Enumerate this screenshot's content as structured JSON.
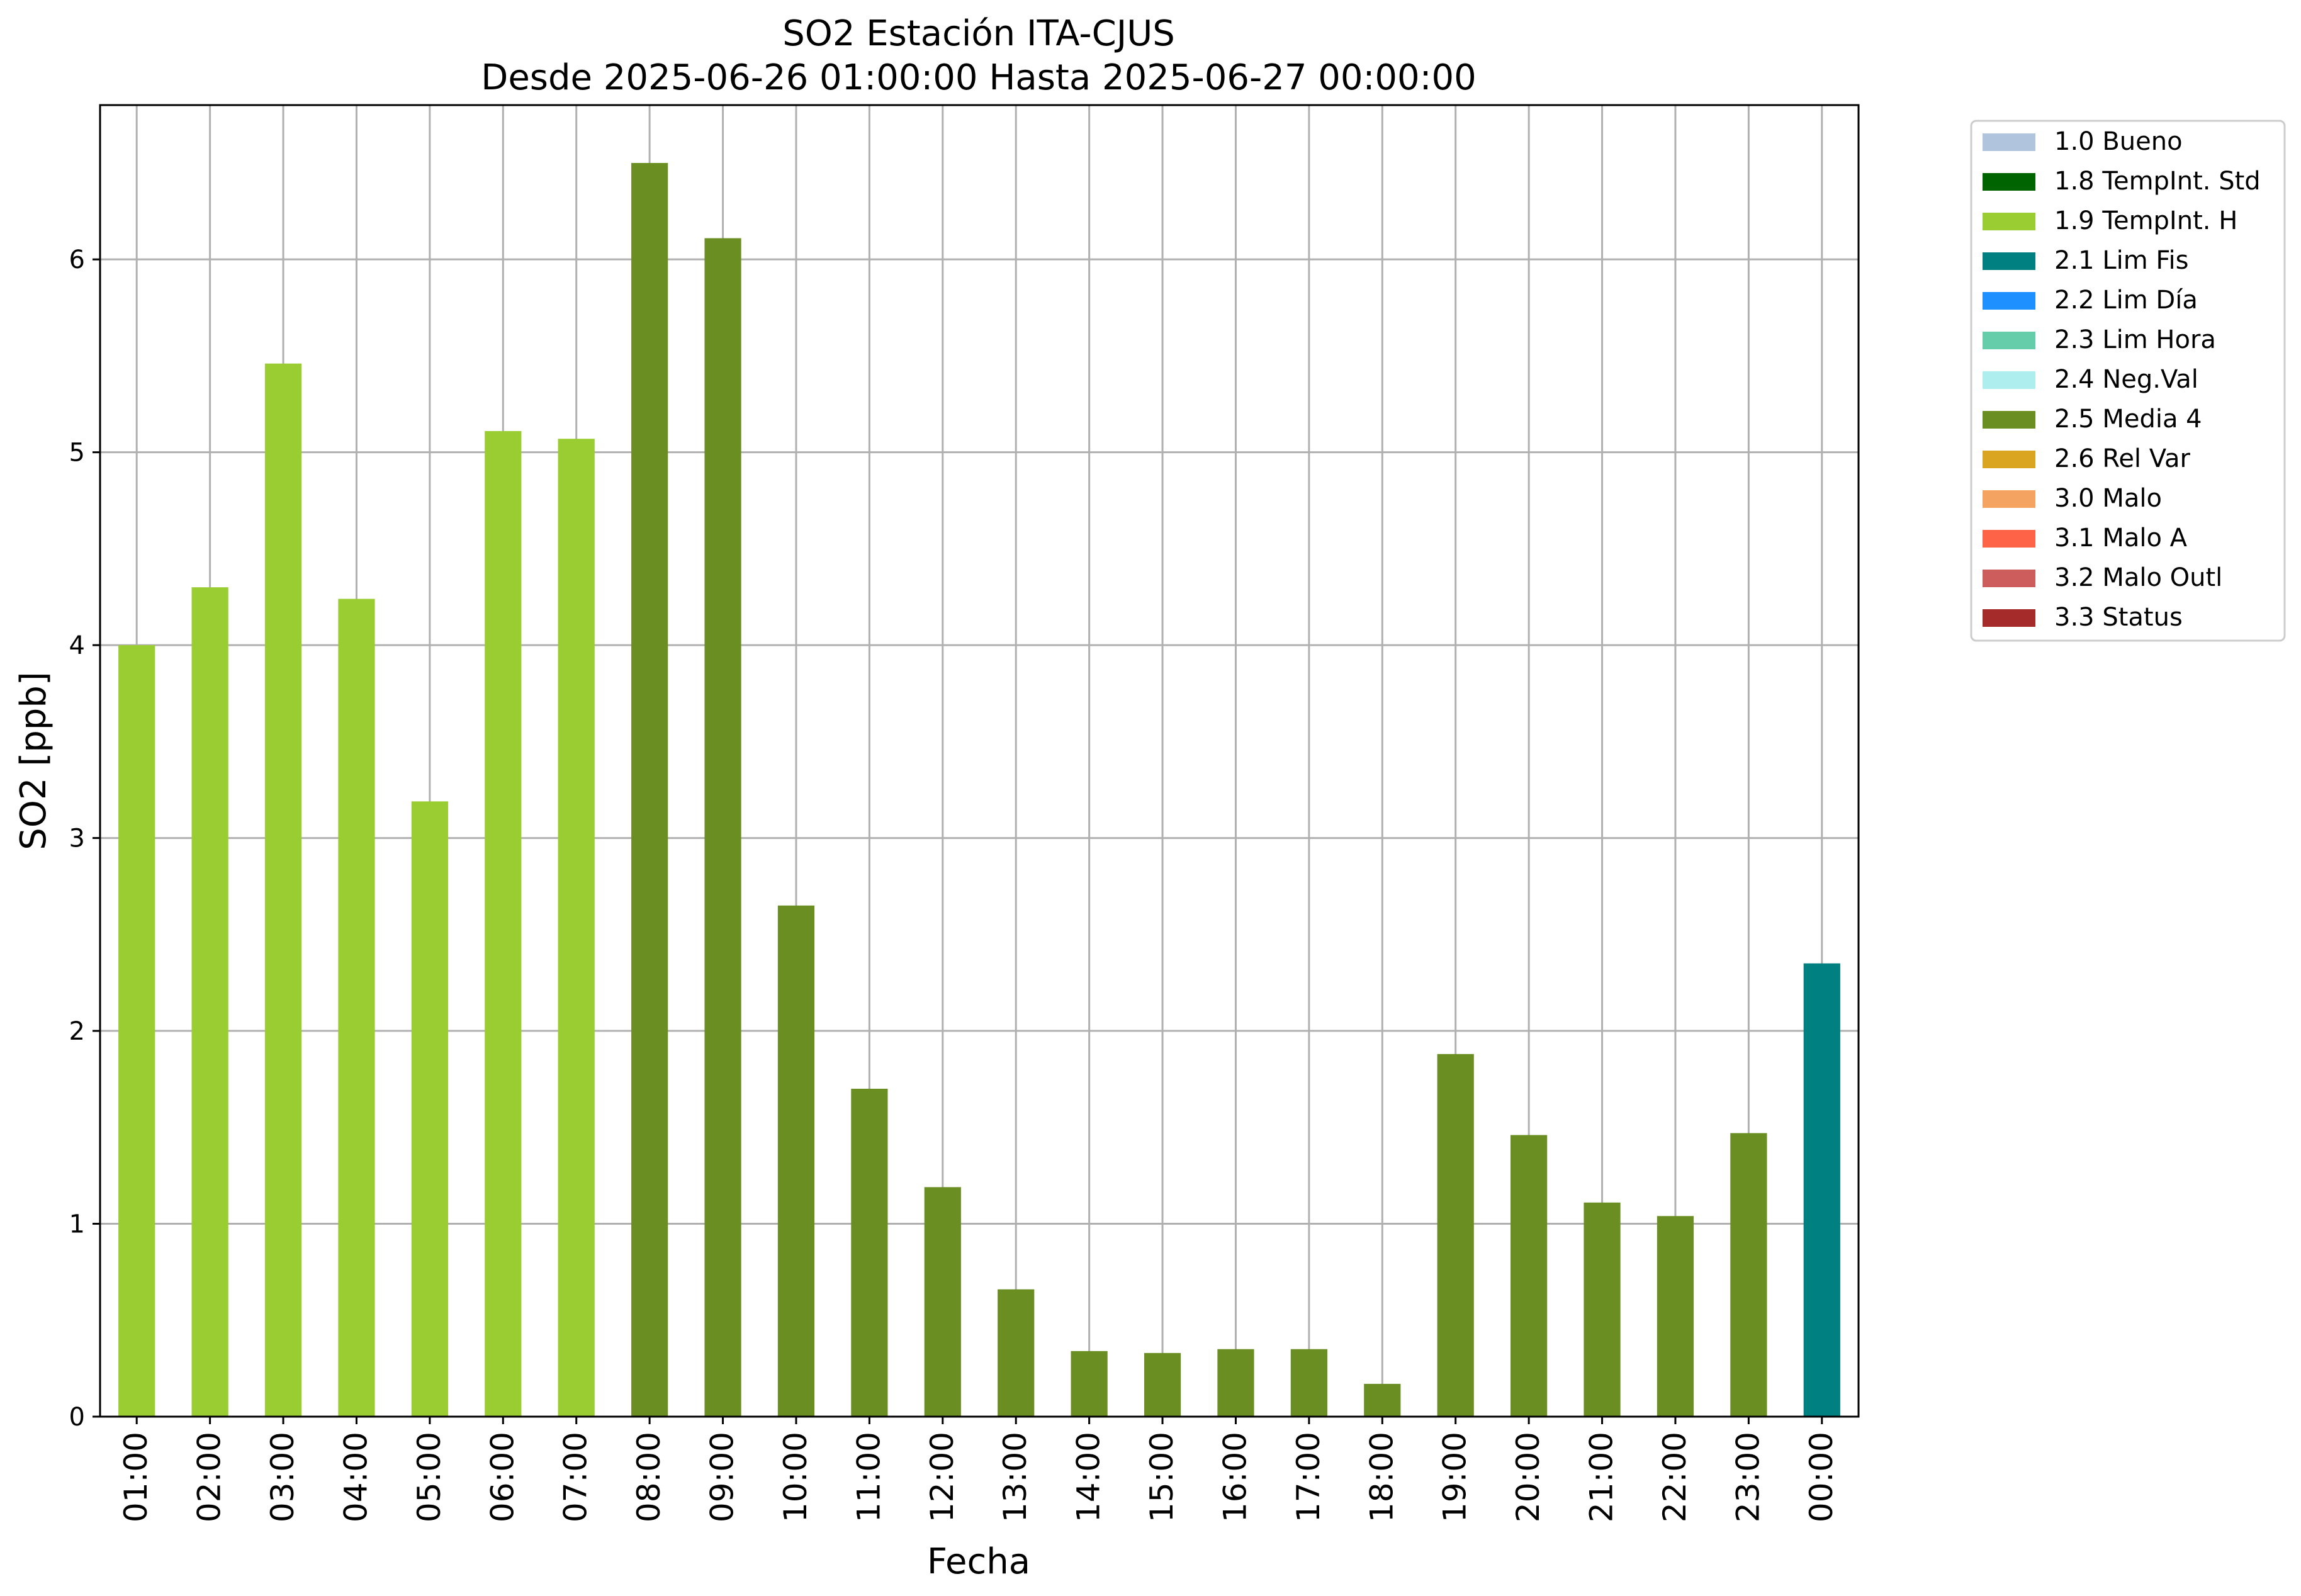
{
  "chart_data": {
    "type": "bar",
    "title": "SO2 Estación ITA-CJUS",
    "subtitle": "Desde 2025-06-26 01:00:00 Hasta 2025-06-27 00:00:00",
    "xlabel": "Fecha",
    "ylabel": "SO2 [ppb]",
    "ylim": [
      0,
      6.8
    ],
    "yticks": [
      "0",
      "1",
      "2",
      "3",
      "4",
      "5",
      "6"
    ],
    "grid": true,
    "legend_position": "outside-top-right",
    "categories": [
      "01:00",
      "02:00",
      "03:00",
      "04:00",
      "05:00",
      "06:00",
      "07:00",
      "08:00",
      "09:00",
      "10:00",
      "11:00",
      "12:00",
      "13:00",
      "14:00",
      "15:00",
      "16:00",
      "17:00",
      "18:00",
      "19:00",
      "20:00",
      "21:00",
      "22:00",
      "23:00",
      "00:00"
    ],
    "values": [
      4.0,
      4.3,
      5.46,
      4.24,
      3.19,
      5.11,
      5.07,
      6.5,
      6.11,
      2.65,
      1.7,
      1.19,
      0.66,
      0.34,
      0.33,
      0.35,
      0.35,
      0.17,
      1.88,
      1.46,
      1.11,
      1.04,
      1.47,
      2.35
    ],
    "flags": [
      "1.9",
      "1.9",
      "1.9",
      "1.9",
      "1.9",
      "1.9",
      "1.9",
      "2.5",
      "2.5",
      "2.5",
      "2.5",
      "2.5",
      "2.5",
      "2.5",
      "2.5",
      "2.5",
      "2.5",
      "2.5",
      "2.5",
      "2.5",
      "2.5",
      "2.5",
      "2.5",
      "2.1"
    ],
    "legend": [
      {
        "code": "1.0",
        "label": "1.0 Bueno",
        "color": "#b0c4de"
      },
      {
        "code": "1.8",
        "label": "1.8 TempInt. Std",
        "color": "#006400"
      },
      {
        "code": "1.9",
        "label": "1.9 TempInt. H",
        "color": "#9acd32"
      },
      {
        "code": "2.1",
        "label": "2.1 Lim Fis",
        "color": "#008080"
      },
      {
        "code": "2.2",
        "label": "2.2 Lim Día",
        "color": "#1e90ff"
      },
      {
        "code": "2.3",
        "label": "2.3 Lim Hora",
        "color": "#66cdaa"
      },
      {
        "code": "2.4",
        "label": "2.4 Neg.Val",
        "color": "#afeeee"
      },
      {
        "code": "2.5",
        "label": "2.5 Media 4",
        "color": "#6b8e23"
      },
      {
        "code": "2.6",
        "label": "2.6 Rel Var",
        "color": "#daa520"
      },
      {
        "code": "3.0",
        "label": "3.0 Malo",
        "color": "#f4a460"
      },
      {
        "code": "3.1",
        "label": "3.1 Malo A",
        "color": "#ff6347"
      },
      {
        "code": "3.2",
        "label": "3.2 Malo Outl",
        "color": "#cd5c5c"
      },
      {
        "code": "3.3",
        "label": "3.3 Status",
        "color": "#a52a2a"
      }
    ]
  }
}
